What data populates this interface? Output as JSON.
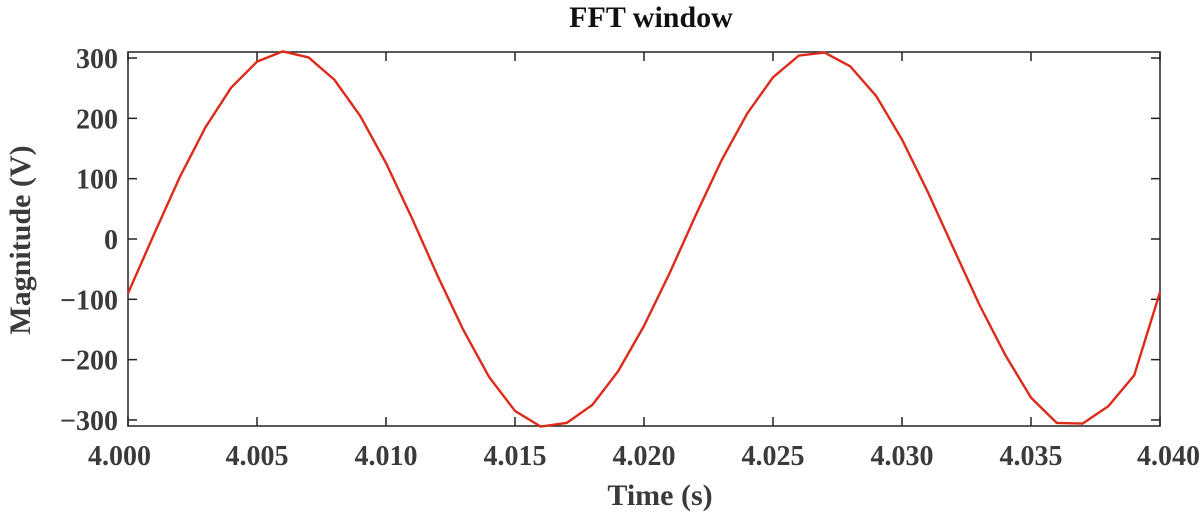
{
  "chart_data": {
    "type": "line",
    "title": "FFT window",
    "xlabel": "Time (s)",
    "ylabel": "Magnitude (V)",
    "xlim": [
      4.0,
      4.04
    ],
    "ylim": [
      -310,
      310
    ],
    "xticks": [
      4.0,
      4.005,
      4.01,
      4.015,
      4.02,
      4.025,
      4.03,
      4.035,
      4.04
    ],
    "xtick_labels": [
      "4.000",
      "4.005",
      "4.010",
      "4.015",
      "4.020",
      "4.025",
      "4.030",
      "4.035",
      "4.040"
    ],
    "yticks": [
      300,
      200,
      100,
      0,
      -100,
      -200,
      -300
    ],
    "ytick_labels": [
      "300",
      "200",
      "100",
      "0",
      "−100",
      "−200",
      "−300"
    ],
    "grid": false,
    "line_color": "#dd2b1a",
    "series": [
      {
        "x": [
          4.0,
          4.001,
          4.002,
          4.003,
          4.004,
          4.005,
          4.006,
          4.007,
          4.008,
          4.009,
          4.01,
          4.011,
          4.012,
          4.013,
          4.014,
          4.015,
          4.016,
          4.017,
          4.018,
          4.019,
          4.02,
          4.021,
          4.022,
          4.023,
          4.024,
          4.025,
          4.026,
          4.027,
          4.028,
          4.029,
          4.03,
          4.031,
          4.032,
          4.033,
          4.034,
          4.035,
          4.036,
          4.037,
          4.038,
          4.039,
          4.04
        ],
        "y": [
          -90,
          7,
          102,
          185,
          251,
          294,
          311,
          301,
          264,
          204,
          126,
          35,
          -61,
          -151,
          -229,
          -285,
          -311,
          -305,
          -275,
          -219,
          -144,
          -56,
          39,
          130,
          208,
          268,
          304,
          309,
          286,
          237,
          165,
          78,
          -16,
          -109,
          -192,
          -263,
          -305,
          -306,
          -277,
          -226,
          -88
        ]
      }
    ]
  }
}
